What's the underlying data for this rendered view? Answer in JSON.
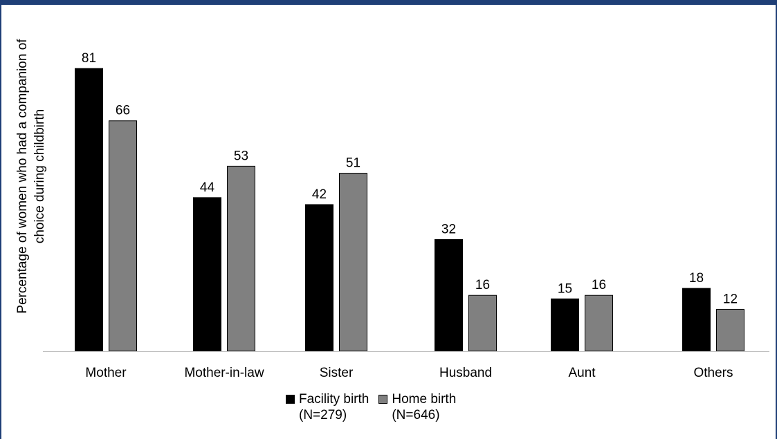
{
  "colors": {
    "frame": "#1f3f77",
    "facility": "#000000",
    "home": "#808080",
    "axis": "#bfbfbf"
  },
  "chart_data": {
    "type": "bar",
    "title": "",
    "ylabel_lines": [
      "Percentage of women who had a companion of",
      "choice during childbirth"
    ],
    "xlabel": "",
    "categories": [
      "Mother",
      "Mother-in-law",
      "Sister",
      "Husband",
      "Aunt",
      "Others"
    ],
    "series": [
      {
        "name": "Facility birth",
        "name_detail": "(N=279)",
        "color": "#000000",
        "values": [
          81,
          44,
          42,
          32,
          15,
          18
        ]
      },
      {
        "name": "Home birth",
        "name_detail": "(N=646)",
        "color": "#808080",
        "values": [
          66,
          53,
          51,
          16,
          16,
          12
        ]
      }
    ],
    "ylim": [
      0,
      81
    ],
    "grid": false,
    "data_labels": true,
    "legend_position": "bottom"
  }
}
